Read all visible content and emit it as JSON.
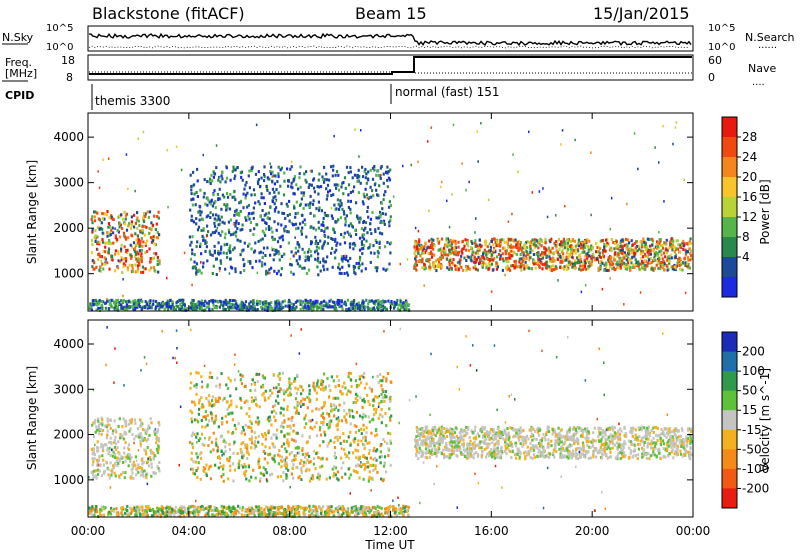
{
  "header": {
    "station": "Blackstone (fitACF)",
    "beam": "Beam 15",
    "date": "15/Jan/2015"
  },
  "panels": {
    "nsky_label": "N.Sky",
    "nsearch_label": "N.Search",
    "nsearch_marker": "......",
    "freq_label_1": "Freq.",
    "freq_label_2": "[MHz]",
    "nave_label": "Nave",
    "nave_marker": "....",
    "cpid_label": "CPID",
    "count_tick_top": "10^5",
    "count_tick_bottom": "10^0",
    "freq_ticks": [
      "18",
      "8"
    ],
    "nave_ticks": [
      "60",
      "0"
    ]
  },
  "cpid": [
    {
      "name": "themis 3300",
      "start_hour": 0
    },
    {
      "name": "normal (fast) 151",
      "start_hour": 12.9
    }
  ],
  "chart_data": [
    {
      "type": "heatmap",
      "name": "power",
      "ylabel": "Slant Range [km]",
      "xlabel": "Time UT",
      "xlim": [
        0,
        24
      ],
      "ylim": [
        180,
        4530
      ],
      "yticks": [
        "1000",
        "2000",
        "3000",
        "4000"
      ],
      "xticks": [
        "00:00",
        "04:00",
        "08:00",
        "12:00",
        "16:00",
        "20:00",
        "00:00"
      ],
      "colorbar": {
        "label": "Power [dB]",
        "ticks": [
          "28",
          "24",
          "20",
          "16",
          "12",
          "8",
          "4"
        ],
        "colors": [
          "#e8190e",
          "#f04a10",
          "#f5861c",
          "#f7c42a",
          "#b9d235",
          "#56b54a",
          "#278a4a",
          "#1b4a9a",
          "#1a2be0"
        ]
      },
      "features": [
        {
          "kind": "band",
          "t_start": 0.1,
          "t_end": 2.8,
          "range_start_km": 1050,
          "range_end_km": 2400,
          "level": "high"
        },
        {
          "kind": "band",
          "t_start": 12.9,
          "t_end": 23.9,
          "range_start_km": 1100,
          "range_end_km": 1800,
          "level": "high"
        },
        {
          "kind": "patch",
          "t_start": 4.0,
          "t_end": 12.0,
          "range_start_km": 1000,
          "range_end_km": 3400,
          "level": "low"
        },
        {
          "kind": "ground",
          "t_start": 0.0,
          "t_end": 12.7,
          "range_start_km": 200,
          "range_end_km": 450,
          "level": "low"
        }
      ]
    },
    {
      "type": "heatmap",
      "name": "velocity",
      "ylabel": "Slant Range [km]",
      "xlabel": "Time UT",
      "xlim": [
        0,
        24
      ],
      "ylim": [
        180,
        4530
      ],
      "yticks": [
        "1000",
        "2000",
        "3000",
        "4000"
      ],
      "xticks": [
        "00:00",
        "04:00",
        "08:00",
        "12:00",
        "16:00",
        "20:00",
        "00:00"
      ],
      "colorbar": {
        "label": "Velocity [m s^-1]",
        "ticks": [
          "200",
          "100",
          "50",
          "15",
          "-15",
          "-50",
          "-100",
          "-200"
        ],
        "colors": [
          "#1a2bb8",
          "#1f6fa8",
          "#2f9a4a",
          "#5fc03a",
          "#c4c4c0",
          "#f5b020",
          "#f58a18",
          "#f25a14",
          "#e81c10"
        ]
      },
      "features": [
        {
          "kind": "band",
          "t_start": 0.1,
          "t_end": 2.8,
          "range_start_km": 1050,
          "range_end_km": 2400,
          "level": "near-zero"
        },
        {
          "kind": "band",
          "t_start": 12.9,
          "t_end": 23.9,
          "range_start_km": 1500,
          "range_end_km": 2200,
          "level": "near-zero"
        },
        {
          "kind": "patch",
          "t_start": 4.0,
          "t_end": 12.0,
          "range_start_km": 1000,
          "range_end_km": 3400,
          "level": "negative"
        },
        {
          "kind": "ground",
          "t_start": 0.0,
          "t_end": 12.7,
          "range_start_km": 200,
          "range_end_km": 450,
          "level": "negative"
        }
      ]
    }
  ]
}
